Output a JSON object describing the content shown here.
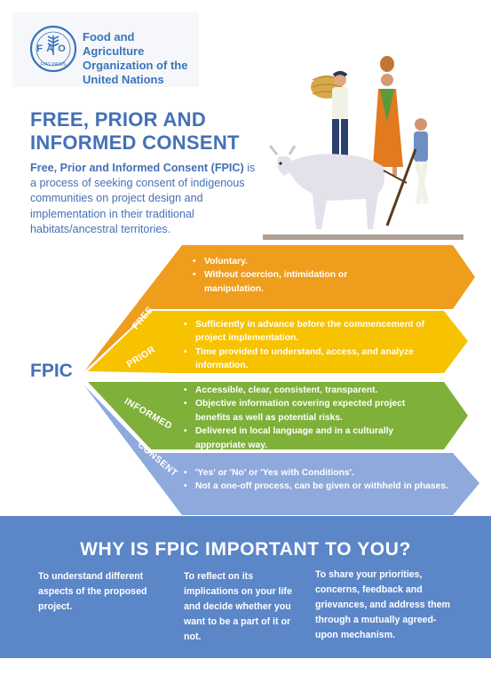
{
  "organization": {
    "logo_text": "FAO",
    "logo_motto": "FIAT PANIS",
    "name": "Food and Agriculture Organization of the United Nations"
  },
  "header": {
    "title": "FREE, PRIOR AND INFORMED CONSENT",
    "intro_bold": "Free, Prior and Informed Consent (FPIC)",
    "intro_rest": " is a process of seeking consent of indigenous communities on project design and implementation in their traditional habitats/ancestral territories."
  },
  "fpic": {
    "label": "FPIC",
    "bands": [
      {
        "label": "FREE",
        "color": "#ef9d1c",
        "points": [
          "Voluntary.",
          "Without coercion, intimidation or manipulation."
        ]
      },
      {
        "label": "PRIOR",
        "color": "#f7c200",
        "points": [
          "Sufficiently in advance before the commencement of project implementation.",
          "Time provided to understand, access, and analyze information."
        ]
      },
      {
        "label": "INFORMED",
        "color": "#7fb03a",
        "points": [
          "Accessible, clear, consistent, transparent.",
          "Objective information covering expected project benefits as well as potential risks.",
          "Delivered in local language and in a culturally appropriate way."
        ]
      },
      {
        "label": "CONSENT",
        "color": "#8ea9dc",
        "points": [
          "'Yes' or 'No' or 'Yes with Conditions'.",
          "Not a one-off process, can be given or withheld in phases."
        ]
      }
    ]
  },
  "why": {
    "title": "WHY IS FPIC IMPORTANT TO YOU?",
    "columns": [
      "To understand different aspects of the proposed project.",
      "To reflect on its implications on your life and decide whether you want to be a part of it or not.",
      "To share your priorities, concerns, feedback and grievances, and address them through a mutually agreed-upon mechanism."
    ]
  },
  "colors": {
    "brand_blue": "#4470b7",
    "section_blue": "#5b86c8"
  }
}
